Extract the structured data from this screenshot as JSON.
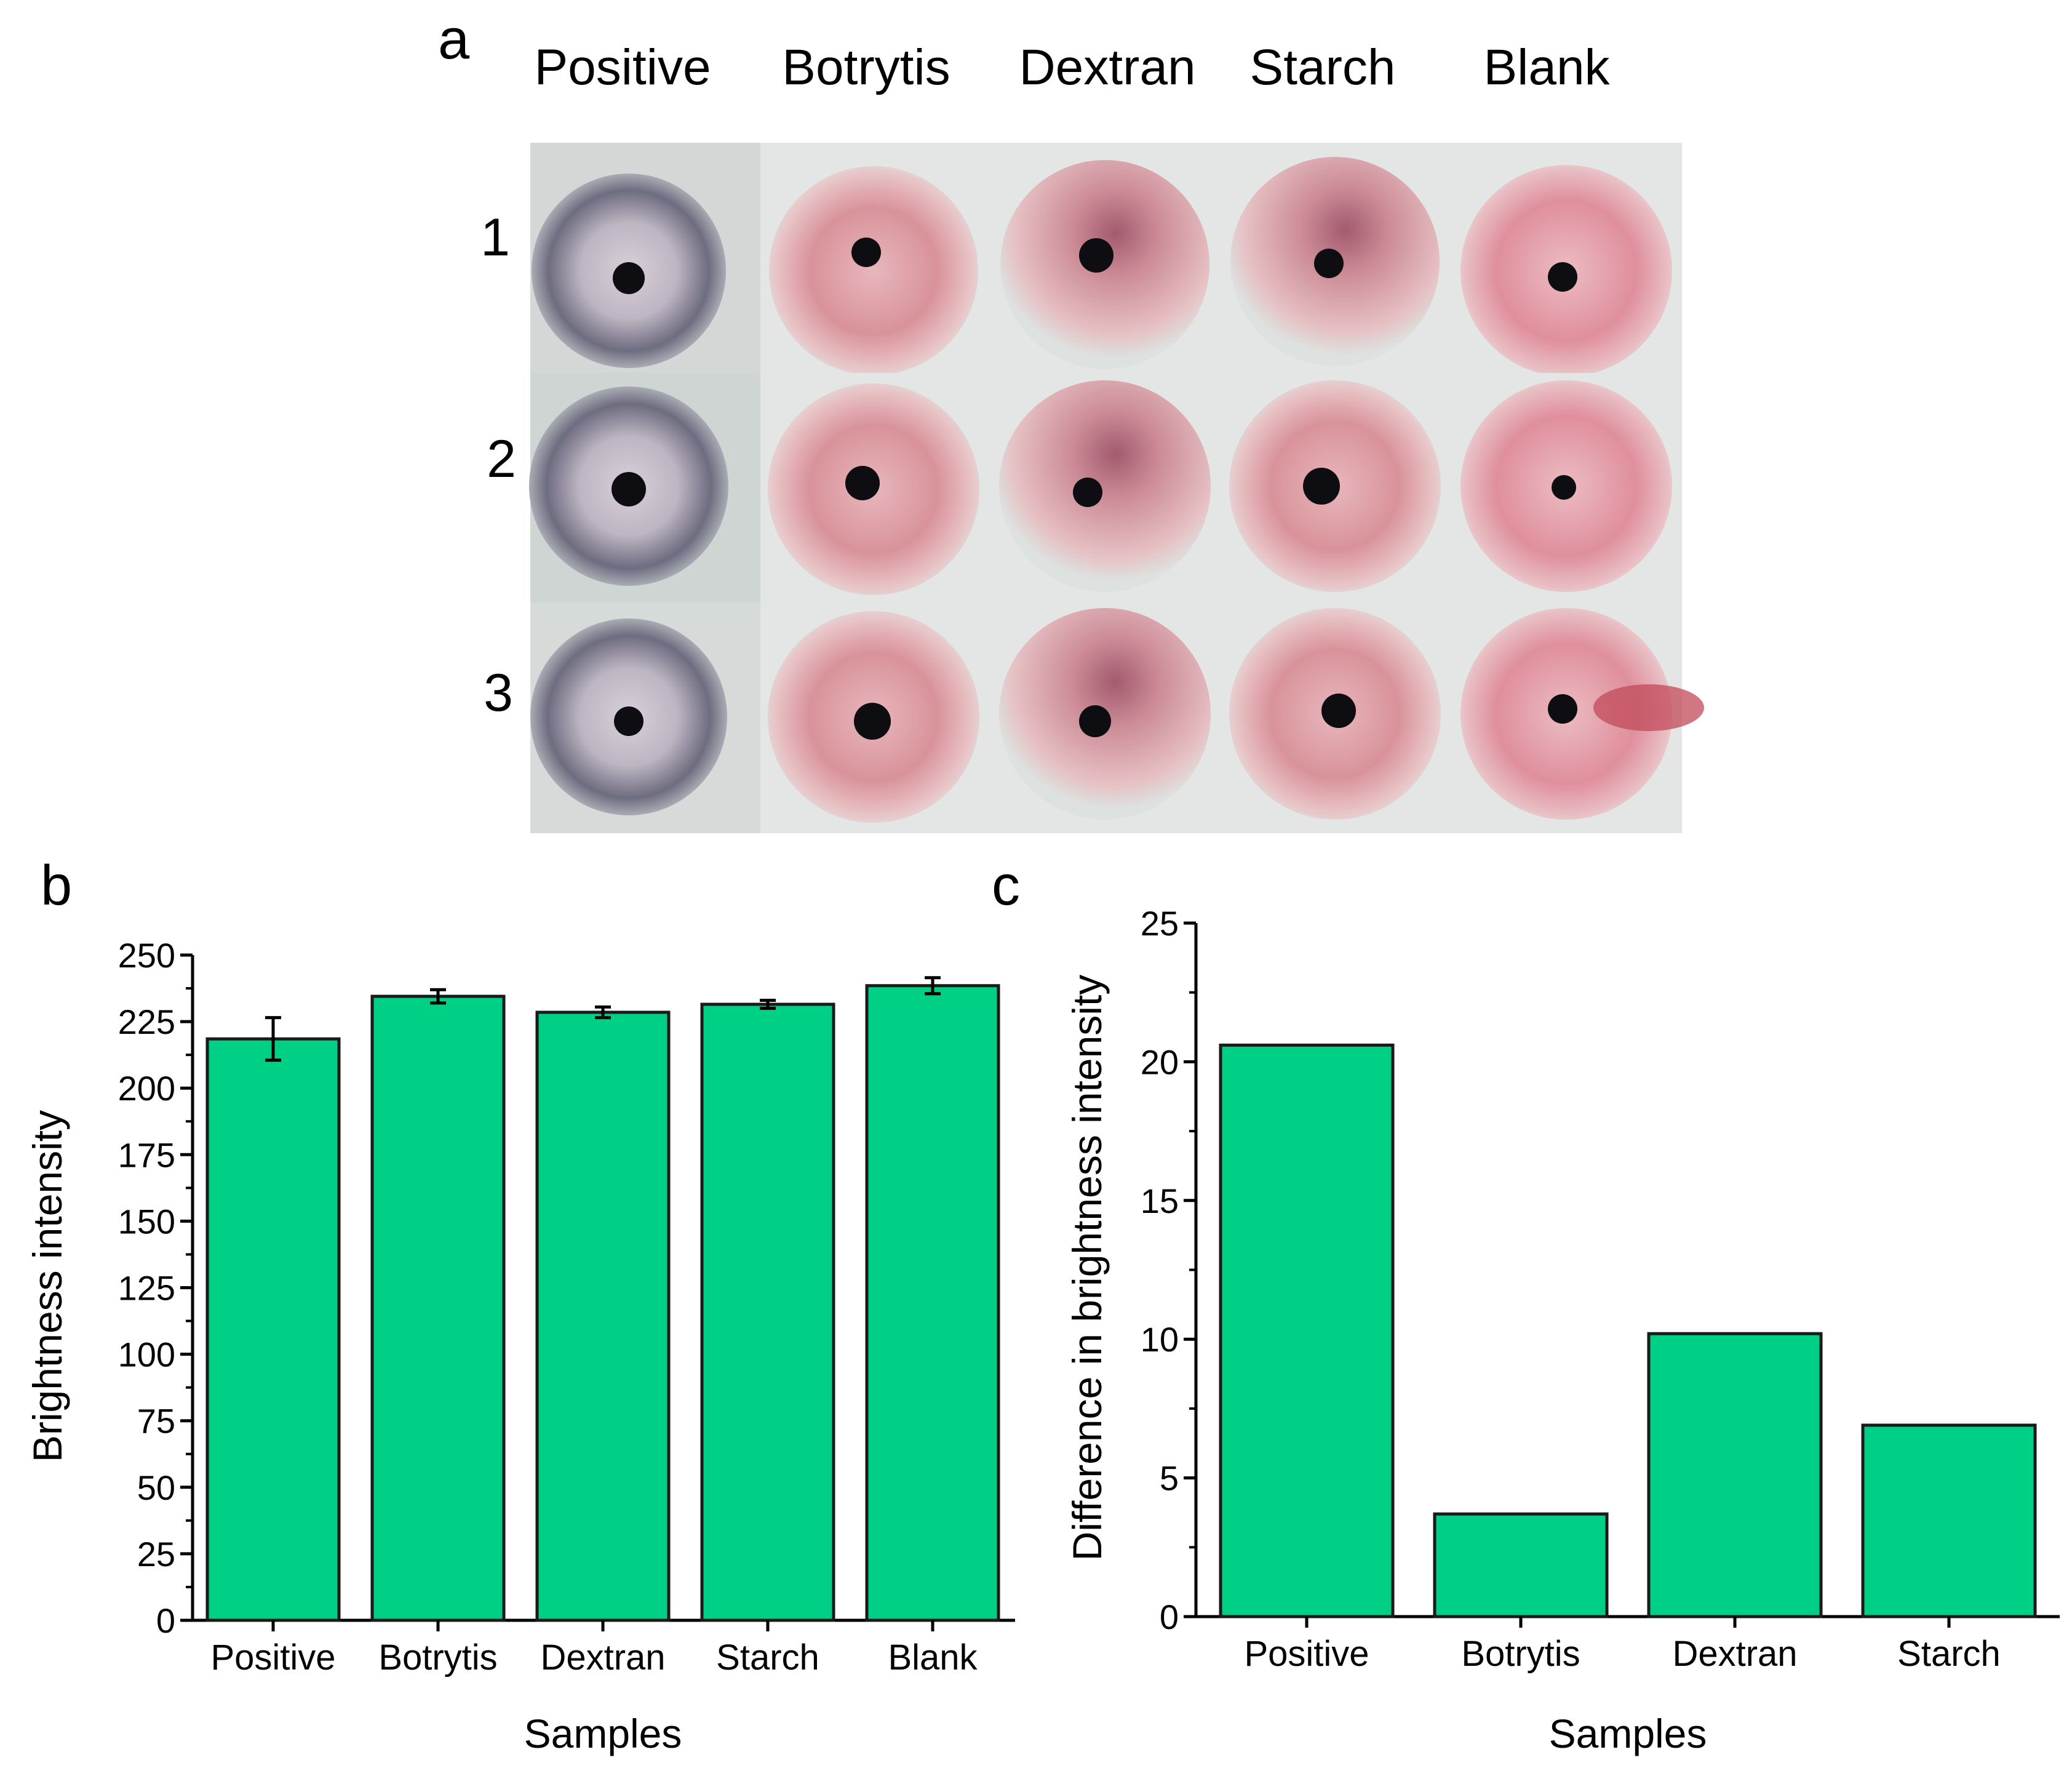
{
  "panel_labels": {
    "a": "a",
    "b": "b",
    "c": "c"
  },
  "panel_a": {
    "columns": [
      "Positive",
      "Botrytis",
      "Dextran",
      "Starch",
      "Blank"
    ],
    "rows": [
      "1",
      "2",
      "3"
    ],
    "image_description": "photographs of stained mycelial disks"
  },
  "chart_data": [
    {
      "type": "bar",
      "categories": [
        "Positive",
        "Botrytis",
        "Dextran",
        "Starch",
        "Blank"
      ],
      "values": [
        218.5,
        234.5,
        228.5,
        231.5,
        238.5
      ],
      "errors": [
        8,
        2.5,
        2,
        1.5,
        3
      ],
      "title": "",
      "xlabel": "Samples",
      "ylabel": "Brightness intensity",
      "ylim": [
        0,
        250
      ],
      "yticks": [
        "0",
        "25",
        "50",
        "75",
        "100",
        "125",
        "150",
        "175",
        "200",
        "225",
        "250"
      ],
      "bar_color": "#00cf86"
    },
    {
      "type": "bar",
      "categories": [
        "Positive",
        "Botrytis",
        "Dextran",
        "Starch"
      ],
      "values": [
        20.6,
        3.7,
        10.2,
        6.9
      ],
      "title": "",
      "xlabel": "Samples",
      "ylabel": "Difference in brightness intensity",
      "ylim": [
        0,
        25
      ],
      "yticks": [
        "0",
        "5",
        "10",
        "15",
        "20",
        "25"
      ],
      "bar_color": "#00cf86"
    }
  ]
}
